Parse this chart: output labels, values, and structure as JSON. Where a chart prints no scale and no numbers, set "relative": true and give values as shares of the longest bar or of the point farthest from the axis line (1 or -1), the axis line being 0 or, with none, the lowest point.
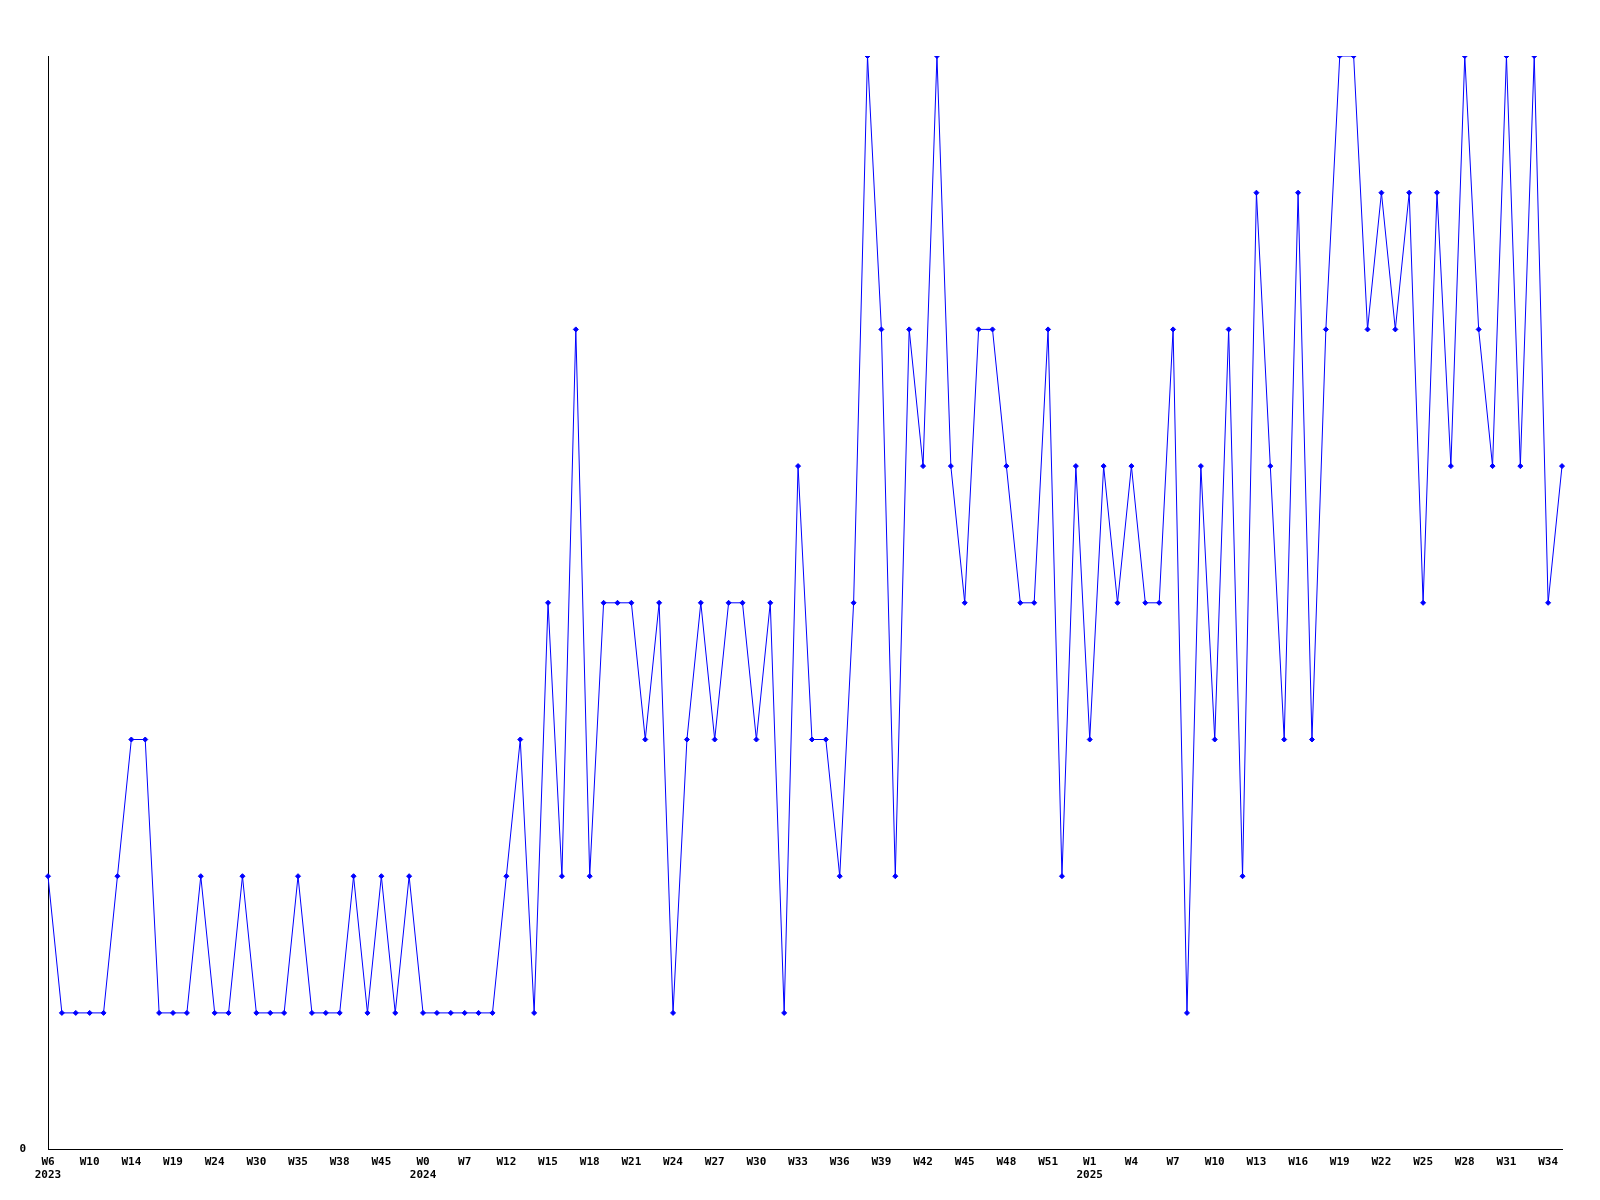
{
  "chart_data": {
    "type": "line",
    "relative": true,
    "marker": "diamond",
    "line_style": "solid",
    "grid": false,
    "legend": false,
    "annotations": [
      "0"
    ],
    "categories": [
      "W6\n2023",
      null,
      null,
      "W10",
      null,
      null,
      "W14",
      null,
      null,
      "W19",
      null,
      null,
      "W24",
      null,
      null,
      "W30",
      null,
      null,
      "W35",
      null,
      null,
      "W38",
      null,
      null,
      "W45",
      null,
      null,
      "W0\n2024",
      null,
      null,
      "W7",
      null,
      null,
      "W12",
      null,
      null,
      "W15",
      null,
      null,
      "W18",
      null,
      null,
      "W21",
      null,
      null,
      "W24",
      null,
      null,
      "W27",
      null,
      null,
      "W30",
      null,
      null,
      "W33",
      null,
      null,
      "W36",
      null,
      null,
      "W39",
      null,
      null,
      "W42",
      null,
      null,
      "W45",
      null,
      null,
      "W48",
      null,
      null,
      "W51",
      null,
      null,
      "W1\n2025",
      null,
      null,
      "W4",
      null,
      null,
      "W7",
      null,
      null,
      "W10",
      null,
      null,
      "W13",
      null,
      null,
      "W16",
      null,
      null,
      "W19",
      null,
      null,
      "W22",
      null,
      null,
      "W25",
      null,
      null,
      "W28",
      null,
      null,
      "W31",
      null,
      null,
      "W34",
      null
    ],
    "series": [
      {
        "color": "#0000ff",
        "values": [
          0.25,
          0.125,
          0.125,
          0.125,
          0.125,
          0.25,
          0.375,
          0.375,
          0.125,
          0.125,
          0.125,
          0.25,
          0.125,
          0.125,
          0.25,
          0.125,
          0.125,
          0.125,
          0.25,
          0.125,
          0.125,
          0.125,
          0.25,
          0.125,
          0.25,
          0.125,
          0.25,
          0.125,
          0.125,
          0.125,
          0.125,
          0.125,
          0.125,
          0.25,
          0.375,
          0.125,
          0.5,
          0.25,
          0.75,
          0.25,
          0.5,
          0.5,
          0.5,
          0.375,
          0.5,
          0.125,
          0.375,
          0.5,
          0.375,
          0.5,
          0.5,
          0.375,
          0.5,
          0.125,
          0.625,
          0.375,
          0.375,
          0.25,
          0.5,
          1,
          0.75,
          0.25,
          0.75,
          0.625,
          1,
          0.625,
          0.5,
          0.75,
          0.75,
          0.625,
          0.5,
          0.5,
          0.75,
          0.25,
          0.625,
          0.375,
          0.625,
          0.5,
          0.625,
          0.5,
          0.5,
          0.75,
          0.125,
          0.625,
          0.375,
          0.75,
          0.25,
          0.875,
          0.625,
          0.375,
          0.875,
          0.375,
          0.75,
          1,
          1,
          0.75,
          0.875,
          0.75,
          0.875,
          0.5,
          0.875,
          0.625,
          1,
          0.75,
          0.625,
          1,
          0.625,
          1,
          0.5,
          0.625
        ]
      }
    ]
  }
}
